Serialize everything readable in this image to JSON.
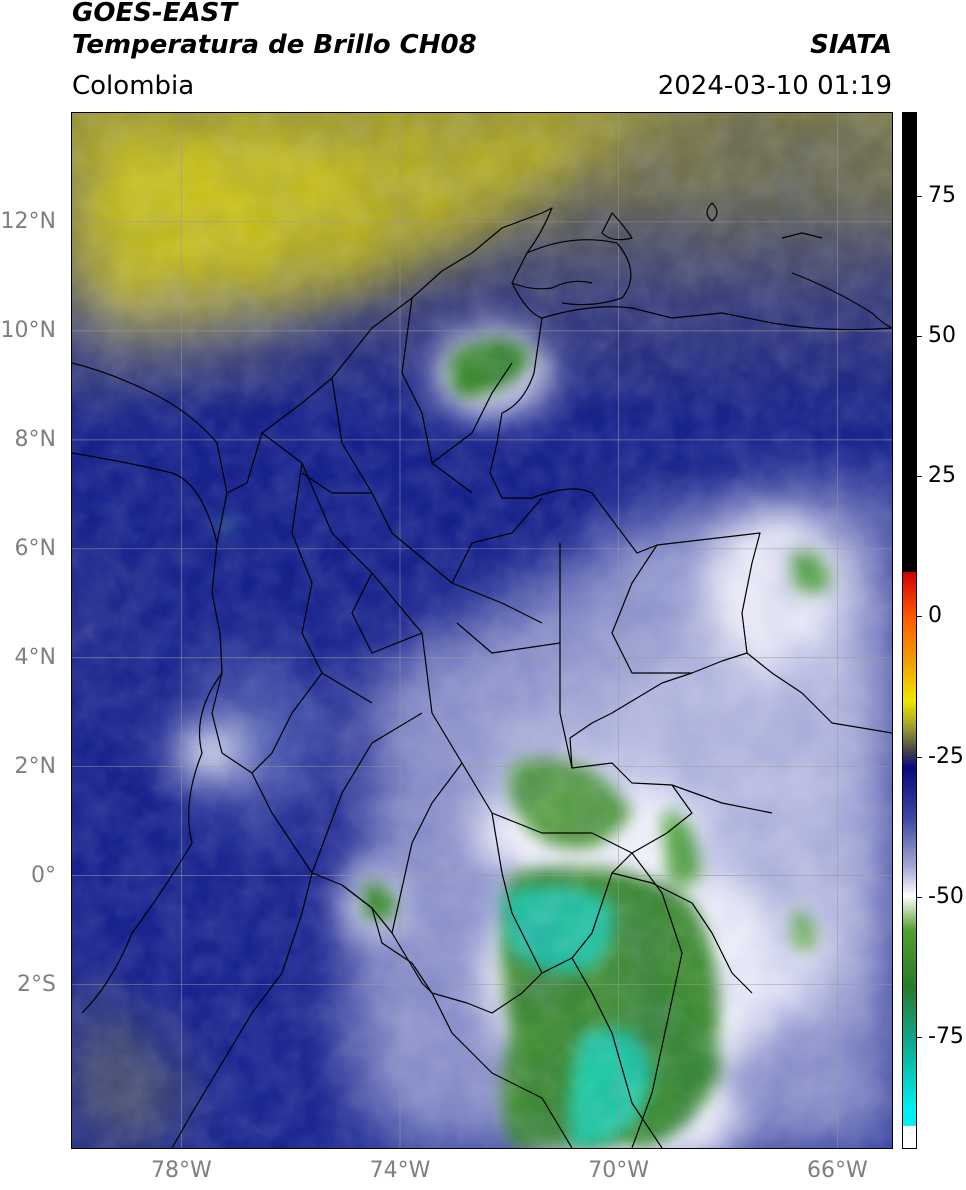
{
  "header": {
    "satellite": "GOES-EAST",
    "product": "Temperatura de Brillo CH08",
    "brand": "SIATA",
    "region": "Colombia",
    "timestamp": "2024-03-10 01:19"
  },
  "map": {
    "lon_range": [
      -80.0,
      -65.0
    ],
    "lat_range": [
      -5.0,
      14.0
    ],
    "lat_ticks": [
      {
        "value": 12,
        "label": "12°N"
      },
      {
        "value": 10,
        "label": "10°N"
      },
      {
        "value": 8,
        "label": "8°N"
      },
      {
        "value": 6,
        "label": "6°N"
      },
      {
        "value": 4,
        "label": "4°N"
      },
      {
        "value": 2,
        "label": "2°N"
      },
      {
        "value": 0,
        "label": "0°"
      },
      {
        "value": -2,
        "label": "2°S"
      }
    ],
    "lon_ticks": [
      {
        "value": -78,
        "label": "78°W"
      },
      {
        "value": -74,
        "label": "74°W"
      },
      {
        "value": -70,
        "label": "70°W"
      },
      {
        "value": -66,
        "label": "66°W"
      }
    ],
    "gridlines": true,
    "colors": {
      "warm_yellow": "#c8c01c",
      "dark_navy": "#101a80",
      "blue": "#3a4a9e",
      "lavender": "#a8b0d8",
      "white": "#f4f4fa",
      "green": "#3e8e2e",
      "teal": "#1ac8a0"
    }
  },
  "colorbar": {
    "range": [
      -95,
      90
    ],
    "ticks": [
      {
        "value": 75,
        "label": "75"
      },
      {
        "value": 50,
        "label": "50"
      },
      {
        "value": 25,
        "label": "25"
      },
      {
        "value": 0,
        "label": "0"
      },
      {
        "value": -25,
        "label": "-25"
      },
      {
        "value": -50,
        "label": "-50"
      },
      {
        "value": -75,
        "label": "-75"
      }
    ],
    "stops": [
      {
        "value": 90,
        "color": "#000000"
      },
      {
        "value": 8,
        "color": "#000000"
      },
      {
        "value": 7.9,
        "color": "#d00000"
      },
      {
        "value": 0,
        "color": "#ff5a00"
      },
      {
        "value": -8,
        "color": "#f0a000"
      },
      {
        "value": -15,
        "color": "#f0e800"
      },
      {
        "value": -20,
        "color": "#9a9a30"
      },
      {
        "value": -24,
        "color": "#454545"
      },
      {
        "value": -27,
        "color": "#080880"
      },
      {
        "value": -36,
        "color": "#3a48a0"
      },
      {
        "value": -45,
        "color": "#a8acd6"
      },
      {
        "value": -50,
        "color": "#ffffff"
      },
      {
        "value": -56,
        "color": "#54a030"
      },
      {
        "value": -66,
        "color": "#2a7a2a"
      },
      {
        "value": -76,
        "color": "#10a890"
      },
      {
        "value": -88,
        "color": "#00f0f0"
      },
      {
        "value": -91,
        "color": "#00f0f0"
      },
      {
        "value": -91.1,
        "color": "#ffffff"
      },
      {
        "value": -95,
        "color": "#ffffff"
      }
    ]
  }
}
